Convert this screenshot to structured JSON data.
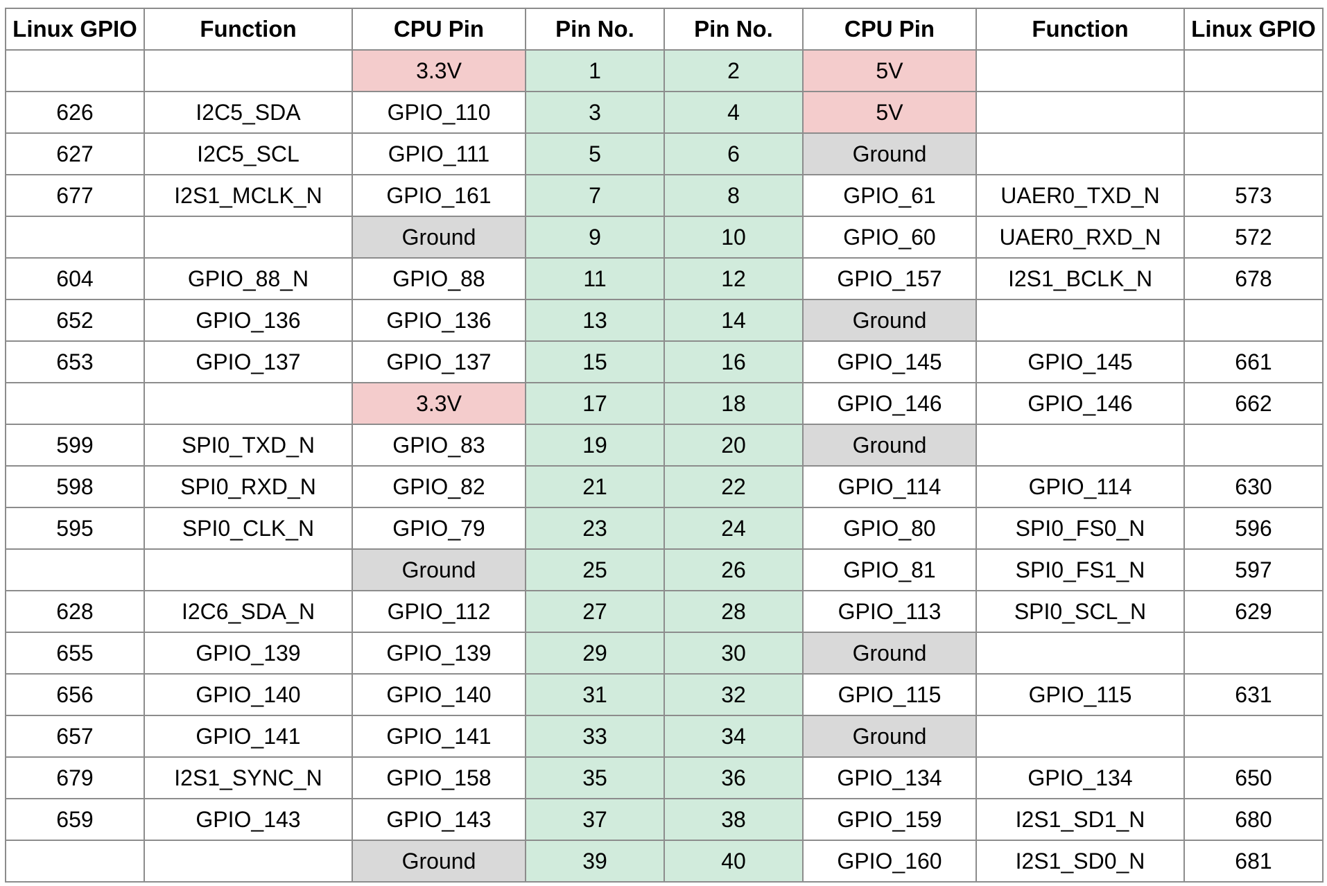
{
  "table": {
    "headers": [
      "Linux GPIO",
      "Function",
      "CPU Pin",
      "Pin No.",
      "Pin No.",
      "CPU Pin",
      "Function",
      "Linux GPIO"
    ],
    "colors": {
      "pin_no_bg": "#d1ebdc",
      "power_bg": "#f4cccc",
      "ground_bg": "#d9d9d9",
      "border": "#8c8c8c"
    },
    "rows": [
      {
        "lg": "",
        "lf": "",
        "lc": "3.3V",
        "lp": "1",
        "rp": "2",
        "rc": "5V",
        "rf": "",
        "rg": ""
      },
      {
        "lg": "626",
        "lf": "I2C5_SDA",
        "lc": "GPIO_110",
        "lp": "3",
        "rp": "4",
        "rc": "5V",
        "rf": "",
        "rg": ""
      },
      {
        "lg": "627",
        "lf": "I2C5_SCL",
        "lc": "GPIO_111",
        "lp": "5",
        "rp": "6",
        "rc": "Ground",
        "rf": "",
        "rg": ""
      },
      {
        "lg": "677",
        "lf": "I2S1_MCLK_N",
        "lc": "GPIO_161",
        "lp": "7",
        "rp": "8",
        "rc": "GPIO_61",
        "rf": "UAER0_TXD_N",
        "rg": "573"
      },
      {
        "lg": "",
        "lf": "",
        "lc": "Ground",
        "lp": "9",
        "rp": "10",
        "rc": "GPIO_60",
        "rf": "UAER0_RXD_N",
        "rg": "572"
      },
      {
        "lg": "604",
        "lf": "GPIO_88_N",
        "lc": "GPIO_88",
        "lp": "11",
        "rp": "12",
        "rc": "GPIO_157",
        "rf": "I2S1_BCLK_N",
        "rg": "678"
      },
      {
        "lg": "652",
        "lf": "GPIO_136",
        "lc": "GPIO_136",
        "lp": "13",
        "rp": "14",
        "rc": "Ground",
        "rf": "",
        "rg": ""
      },
      {
        "lg": "653",
        "lf": "GPIO_137",
        "lc": "GPIO_137",
        "lp": "15",
        "rp": "16",
        "rc": "GPIO_145",
        "rf": "GPIO_145",
        "rg": "661"
      },
      {
        "lg": "",
        "lf": "",
        "lc": "3.3V",
        "lp": "17",
        "rp": "18",
        "rc": "GPIO_146",
        "rf": "GPIO_146",
        "rg": "662"
      },
      {
        "lg": "599",
        "lf": "SPI0_TXD_N",
        "lc": "GPIO_83",
        "lp": "19",
        "rp": "20",
        "rc": "Ground",
        "rf": "",
        "rg": ""
      },
      {
        "lg": "598",
        "lf": "SPI0_RXD_N",
        "lc": "GPIO_82",
        "lp": "21",
        "rp": "22",
        "rc": "GPIO_114",
        "rf": "GPIO_114",
        "rg": "630"
      },
      {
        "lg": "595",
        "lf": "SPI0_CLK_N",
        "lc": "GPIO_79",
        "lp": "23",
        "rp": "24",
        "rc": "GPIO_80",
        "rf": "SPI0_FS0_N",
        "rg": "596"
      },
      {
        "lg": "",
        "lf": "",
        "lc": "Ground",
        "lp": "25",
        "rp": "26",
        "rc": "GPIO_81",
        "rf": "SPI0_FS1_N",
        "rg": "597"
      },
      {
        "lg": "628",
        "lf": "I2C6_SDA_N",
        "lc": "GPIO_112",
        "lp": "27",
        "rp": "28",
        "rc": "GPIO_113",
        "rf": "SPI0_SCL_N",
        "rg": "629"
      },
      {
        "lg": "655",
        "lf": "GPIO_139",
        "lc": "GPIO_139",
        "lp": "29",
        "rp": "30",
        "rc": "Ground",
        "rf": "",
        "rg": ""
      },
      {
        "lg": "656",
        "lf": "GPIO_140",
        "lc": "GPIO_140",
        "lp": "31",
        "rp": "32",
        "rc": "GPIO_115",
        "rf": "GPIO_115",
        "rg": "631"
      },
      {
        "lg": "657",
        "lf": "GPIO_141",
        "lc": "GPIO_141",
        "lp": "33",
        "rp": "34",
        "rc": "Ground",
        "rf": "",
        "rg": ""
      },
      {
        "lg": "679",
        "lf": "I2S1_SYNC_N",
        "lc": "GPIO_158",
        "lp": "35",
        "rp": "36",
        "rc": "GPIO_134",
        "rf": "GPIO_134",
        "rg": "650"
      },
      {
        "lg": "659",
        "lf": "GPIO_143",
        "lc": "GPIO_143",
        "lp": "37",
        "rp": "38",
        "rc": "GPIO_159",
        "rf": "I2S1_SD1_N",
        "rg": "680"
      },
      {
        "lg": "",
        "lf": "",
        "lc": "Ground",
        "lp": "39",
        "rp": "40",
        "rc": "GPIO_160",
        "rf": "I2S1_SD0_N",
        "rg": "681"
      }
    ]
  }
}
